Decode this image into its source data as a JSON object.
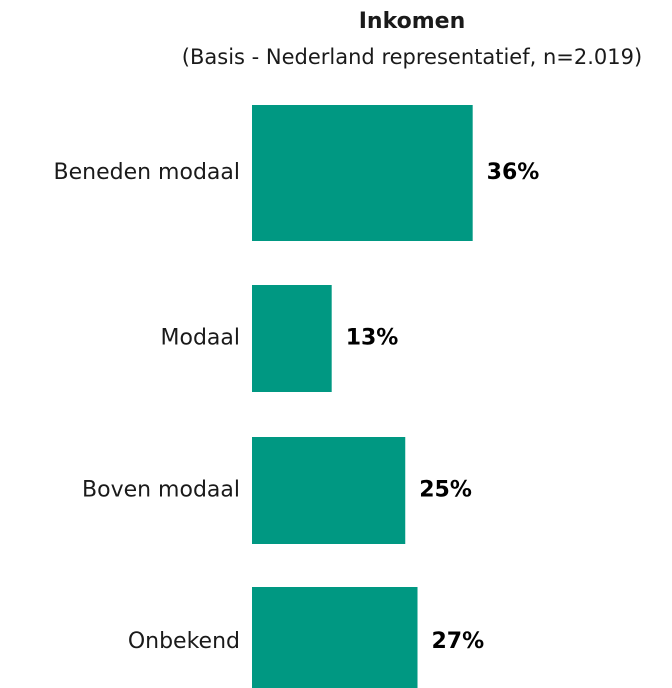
{
  "chart_data": {
    "type": "bar",
    "orientation": "horizontal",
    "title": "Inkomen",
    "subtitle": "(Basis - Nederland representatief, n=2.019)",
    "categories": [
      "Beneden modaal",
      "Modaal",
      "Boven modaal",
      "Onbekend"
    ],
    "values": [
      36,
      13,
      25,
      27
    ],
    "value_labels": [
      "36%",
      "13%",
      "25%",
      "27%"
    ],
    "color": "#009882"
  }
}
